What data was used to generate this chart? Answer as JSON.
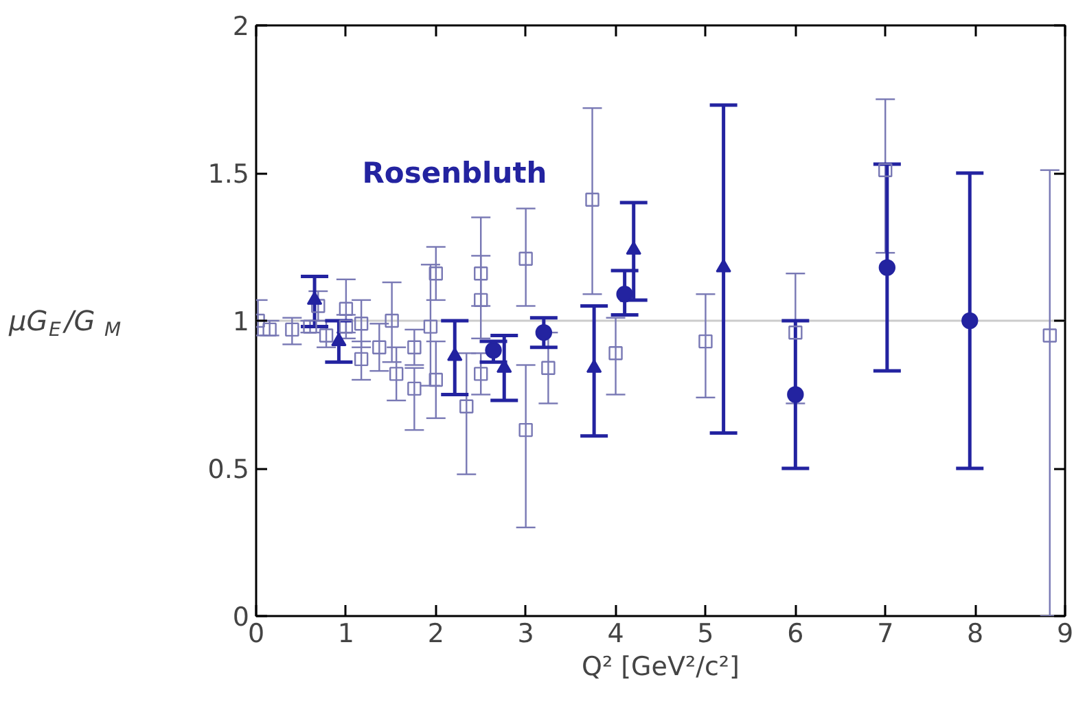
{
  "chart_data": {
    "type": "scatter",
    "xlabel": "Q² [GeV²/c²]",
    "ylabel": "μG$_{E}$/G$_{M}$",
    "annotations": [
      "Rosenbluth"
    ],
    "xlim": [
      0,
      9
    ],
    "ylim": [
      0,
      2
    ],
    "xticks": [
      0,
      1,
      2,
      3,
      4,
      5,
      6,
      7,
      8,
      9
    ],
    "yticks": [
      0,
      0.5,
      1,
      1.5,
      2
    ],
    "grid": false,
    "ref_lines": [
      {
        "axis": "y",
        "value": 1,
        "color": "#cccccc"
      }
    ],
    "series": [
      {
        "color": "#7878b4",
        "marker": "square",
        "x": [
          0.02,
          0.15,
          0.4,
          0.6,
          0.69,
          0.78,
          1.0,
          1.0,
          1.17,
          1.17,
          1.37,
          1.51,
          1.56,
          1.76,
          1.76,
          1.94,
          2.0,
          2.0,
          2.34,
          2.5,
          2.5,
          2.5,
          3.0,
          3.0,
          3.25,
          3.74,
          4.0,
          5.0,
          6.0,
          7.0,
          8.83
        ],
        "values": [
          1.0,
          0.97,
          0.97,
          0.98,
          1.05,
          0.95,
          1.04,
          0.98,
          0.99,
          0.87,
          0.91,
          1.0,
          0.82,
          0.91,
          0.77,
          0.98,
          1.16,
          0.8,
          0.71,
          1.16,
          1.07,
          0.82,
          1.21,
          0.63,
          0.84,
          1.41,
          0.89,
          0.93,
          0.96,
          1.51,
          0.95
        ],
        "errors": [
          [
            0.95,
            1.07
          ],
          [
            0.95,
            1.0
          ],
          [
            0.92,
            1.01
          ],
          [
            0.96,
            1.0
          ],
          [
            1.0,
            1.1
          ],
          [
            0.91,
            1.0
          ],
          [
            0.96,
            1.14
          ],
          [
            0.94,
            1.02
          ],
          [
            0.91,
            1.07
          ],
          [
            0.8,
            0.93
          ],
          [
            0.83,
            0.99
          ],
          [
            0.86,
            1.13
          ],
          [
            0.73,
            0.91
          ],
          [
            0.85,
            0.97
          ],
          [
            0.63,
            0.84
          ],
          [
            0.78,
            1.19
          ],
          [
            1.07,
            1.25
          ],
          [
            0.67,
            0.93
          ],
          [
            0.48,
            0.89
          ],
          [
            1.05,
            1.22
          ],
          [
            0.94,
            1.35
          ],
          [
            0.75,
            0.89
          ],
          [
            1.05,
            1.38
          ],
          [
            0.3,
            0.85
          ],
          [
            0.72,
            0.96
          ],
          [
            1.09,
            1.72
          ],
          [
            0.75,
            1.01
          ],
          [
            0.74,
            1.09
          ],
          [
            0.72,
            1.16
          ],
          [
            1.23,
            1.75
          ],
          [
            0,
            1.51
          ]
        ]
      },
      {
        "color": "#2323a0",
        "marker": "triangle",
        "x": [
          0.65,
          0.92,
          2.21,
          2.76,
          3.76,
          4.2,
          5.2
        ],
        "values": [
          1.07,
          0.93,
          0.88,
          0.84,
          0.84,
          1.24,
          1.18
        ],
        "errors": [
          [
            0.98,
            1.15
          ],
          [
            0.86,
            1.0
          ],
          [
            0.75,
            1.0
          ],
          [
            0.73,
            0.95
          ],
          [
            0.61,
            1.05
          ],
          [
            1.07,
            1.4
          ],
          [
            0.62,
            1.73
          ]
        ]
      },
      {
        "color": "#2323a0",
        "marker": "circle",
        "x": [
          2.64,
          3.2,
          4.1,
          6.0,
          7.02,
          7.94
        ],
        "values": [
          0.9,
          0.96,
          1.09,
          0.75,
          1.18,
          1.0
        ],
        "errors": [
          [
            0.86,
            0.93
          ],
          [
            0.91,
            1.01
          ],
          [
            1.02,
            1.17
          ],
          [
            0.5,
            1.0
          ],
          [
            0.83,
            1.53
          ],
          [
            0.5,
            1.5
          ]
        ]
      }
    ]
  }
}
